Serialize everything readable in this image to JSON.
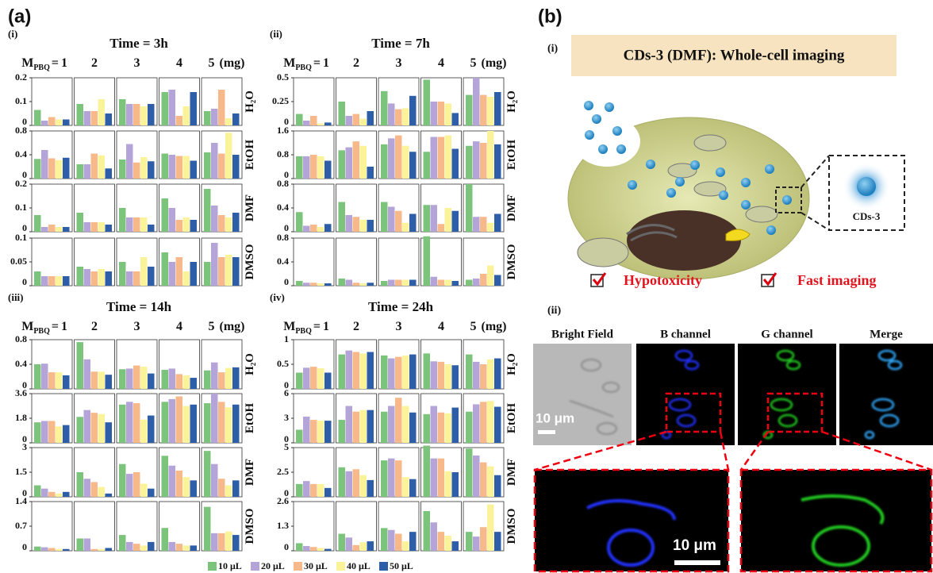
{
  "panel_a": {
    "label": "(a)",
    "mass_prefix": "M",
    "mass_sub": "PBQ",
    "mass_eq": "=",
    "masses": [
      "1",
      "2",
      "3",
      "4",
      "5"
    ],
    "mass_unit": "(mg)",
    "legend": [
      {
        "name": "10 μL",
        "color": "#7cc47c"
      },
      {
        "name": "20 μL",
        "color": "#b4a4d8"
      },
      {
        "name": "30 μL",
        "color": "#f7b98a"
      },
      {
        "name": "40 μL",
        "color": "#fbf39a"
      },
      {
        "name": "50 μL",
        "color": "#2f5ea8"
      }
    ],
    "subpanels": [
      {
        "label": "(i)",
        "title": "Time = 3h",
        "rows": [
          {
            "solvent": "H₂O",
            "ylim": [
              0,
              0.2
            ],
            "yticks": [
              0,
              0.1,
              0.2
            ],
            "values": [
              [
                0.065,
                0.02,
                0.035,
                0.025,
                0.025
              ],
              [
                0.09,
                0.06,
                0.06,
                0.11,
                0.05
              ],
              [
                0.11,
                0.09,
                0.09,
                0.08,
                0.09
              ],
              [
                0.14,
                0.15,
                0.04,
                0.08,
                0.14
              ],
              [
                0.06,
                0.07,
                0.15,
                0.03,
                0.05
              ]
            ]
          },
          {
            "solvent": "EtOH",
            "ylim": [
              0,
              0.8
            ],
            "yticks": [
              0,
              0.4,
              0.8
            ],
            "values": [
              [
                0.33,
                0.48,
                0.34,
                0.31,
                0.35
              ],
              [
                0.24,
                0.24,
                0.42,
                0.39,
                0.17
              ],
              [
                0.32,
                0.58,
                0.27,
                0.36,
                0.29
              ],
              [
                0.42,
                0.4,
                0.38,
                0.38,
                0.3
              ],
              [
                0.44,
                0.6,
                0.42,
                0.77,
                0.4
              ]
            ]
          },
          {
            "solvent": "DMF",
            "ylim": [
              0,
              0.2
            ],
            "yticks": [
              0,
              0.1,
              0.2
            ],
            "values": [
              [
                0.07,
                0.02,
                0.03,
                0.02,
                0.02
              ],
              [
                0.08,
                0.04,
                0.04,
                0.04,
                0.03
              ],
              [
                0.1,
                0.06,
                0.06,
                0.06,
                0.03
              ],
              [
                0.14,
                0.1,
                0.05,
                0.06,
                0.05
              ],
              [
                0.18,
                0.11,
                0.07,
                0.06,
                0.08
              ]
            ]
          },
          {
            "solvent": "DMSO",
            "ylim": [
              0,
              0.1
            ],
            "yticks": [
              0,
              0.05,
              0.1
            ],
            "values": [
              [
                0.03,
                0.02,
                0.02,
                0.02,
                0.02
              ],
              [
                0.04,
                0.035,
                0.03,
                0.035,
                0.03
              ],
              [
                0.05,
                0.03,
                0.03,
                0.06,
                0.04
              ],
              [
                0.07,
                0.05,
                0.06,
                0.03,
                0.05
              ],
              [
                0.05,
                0.09,
                0.06,
                0.065,
                0.06
              ]
            ]
          }
        ]
      },
      {
        "label": "(ii)",
        "title": "Time = 7h",
        "rows": [
          {
            "solvent": "H₂O",
            "ylim": [
              0,
              0.5
            ],
            "yticks": [
              0,
              0.25,
              0.5
            ],
            "values": [
              [
                0.12,
                0.05,
                0.1,
                0.02,
                0.03
              ],
              [
                0.25,
                0.1,
                0.12,
                0.07,
                0.15
              ],
              [
                0.36,
                0.23,
                0.17,
                0.18,
                0.31
              ],
              [
                0.48,
                0.25,
                0.25,
                0.23,
                0.13
              ],
              [
                0.32,
                0.5,
                0.32,
                0.3,
                0.35
              ]
            ]
          },
          {
            "solvent": "EtOH",
            "ylim": [
              0,
              1.6
            ],
            "yticks": [
              0,
              0.8,
              1.6
            ],
            "values": [
              [
                0.75,
                0.75,
                0.8,
                0.75,
                0.6
              ],
              [
                0.95,
                1.05,
                1.25,
                1.1,
                0.4
              ],
              [
                1.15,
                1.35,
                1.45,
                1.1,
                0.9
              ],
              [
                0.9,
                1.4,
                1.4,
                1.45,
                1.0
              ],
              [
                1.1,
                1.25,
                1.2,
                1.6,
                1.15
              ]
            ]
          },
          {
            "solvent": "DMF",
            "ylim": [
              0,
              0.8
            ],
            "yticks": [
              0,
              0.4,
              0.8
            ],
            "values": [
              [
                0.33,
                0.1,
                0.12,
                0.08,
                0.13
              ],
              [
                0.5,
                0.28,
                0.25,
                0.2,
                0.2
              ],
              [
                0.5,
                0.42,
                0.35,
                0.15,
                0.3
              ],
              [
                0.45,
                0.45,
                0.13,
                0.4,
                0.35
              ],
              [
                0.8,
                0.25,
                0.25,
                0.15,
                0.3
              ]
            ]
          },
          {
            "solvent": "DMSO",
            "ylim": [
              0,
              0.8
            ],
            "yticks": [
              0,
              0.4,
              0.8
            ],
            "values": [
              [
                0.08,
                0.05,
                0.05,
                0.04,
                0.04
              ],
              [
                0.12,
                0.1,
                0.05,
                0.04,
                0.05
              ],
              [
                0.08,
                0.1,
                0.1,
                0.1,
                0.1
              ],
              [
                0.83,
                0.15,
                0.1,
                0.1,
                0.08
              ],
              [
                0.1,
                0.12,
                0.2,
                0.34,
                0.18
              ]
            ]
          }
        ]
      },
      {
        "label": "(iii)",
        "title": "Time = 14h",
        "rows": [
          {
            "solvent": "H₂O",
            "ylim": [
              0,
              0.8
            ],
            "yticks": [
              0,
              0.4,
              0.8
            ],
            "values": [
              [
                0.4,
                0.41,
                0.27,
                0.27,
                0.22
              ],
              [
                0.76,
                0.48,
                0.28,
                0.28,
                0.23
              ],
              [
                0.32,
                0.33,
                0.38,
                0.36,
                0.25
              ],
              [
                0.31,
                0.33,
                0.24,
                0.22,
                0.18
              ],
              [
                0.3,
                0.43,
                0.27,
                0.34,
                0.35
              ]
            ]
          },
          {
            "solvent": "EtOH",
            "ylim": [
              0,
              3.6
            ],
            "yticks": [
              0,
              1.8,
              3.6
            ],
            "values": [
              [
                1.5,
                1.6,
                1.6,
                1.2,
                1.3
              ],
              [
                1.9,
                2.4,
                2.2,
                2.1,
                1.5
              ],
              [
                2.8,
                3.0,
                2.9,
                1.7,
                2.0
              ],
              [
                3.0,
                3.2,
                3.4,
                2.7,
                2.8
              ],
              [
                2.9,
                3.6,
                3.0,
                2.6,
                2.8
              ]
            ]
          },
          {
            "solvent": "DMF",
            "ylim": [
              0,
              3
            ],
            "yticks": [
              0,
              1.5,
              3
            ],
            "values": [
              [
                0.7,
                0.5,
                0.3,
                0.2,
                0.3
              ],
              [
                1.5,
                1.1,
                0.9,
                0.6,
                0.2
              ],
              [
                2.0,
                1.4,
                1.5,
                0.8,
                0.5
              ],
              [
                2.5,
                1.9,
                1.6,
                1.2,
                1.0
              ],
              [
                2.8,
                2.0,
                1.1,
                0.7,
                1.0
              ]
            ]
          },
          {
            "solvent": "DMSO",
            "ylim": [
              0,
              1.4
            ],
            "yticks": [
              0,
              0.7,
              1.4
            ],
            "values": [
              [
                0.12,
                0.1,
                0.08,
                0.05,
                0.05
              ],
              [
                0.35,
                0.35,
                0.05,
                0.05,
                0.08
              ],
              [
                0.45,
                0.25,
                0.2,
                0.15,
                0.25
              ],
              [
                0.65,
                0.25,
                0.2,
                0.15,
                0.15
              ],
              [
                1.25,
                0.5,
                0.5,
                0.55,
                0.45
              ]
            ]
          }
        ]
      },
      {
        "label": "(iv)",
        "title": "Time = 24h",
        "rows": [
          {
            "solvent": "H₂O",
            "ylim": [
              0,
              1
            ],
            "yticks": [
              0,
              0.5,
              1
            ],
            "values": [
              [
                0.33,
                0.43,
                0.45,
                0.42,
                0.33
              ],
              [
                0.7,
                0.78,
                0.75,
                0.72,
                0.75
              ],
              [
                0.68,
                0.62,
                0.65,
                0.68,
                0.7
              ],
              [
                0.72,
                0.56,
                0.55,
                0.5,
                0.48
              ],
              [
                0.7,
                0.55,
                0.5,
                0.6,
                0.62
              ]
            ]
          },
          {
            "solvent": "EtOH",
            "ylim": [
              0,
              6
            ],
            "yticks": [
              0,
              3,
              6
            ],
            "values": [
              [
                1.6,
                3.2,
                2.8,
                2.7,
                2.7
              ],
              [
                2.8,
                4.5,
                3.8,
                4.0,
                4.0
              ],
              [
                3.8,
                4.5,
                5.5,
                4.5,
                3.7
              ],
              [
                3.5,
                4.5,
                3.7,
                3.6,
                4.3
              ],
              [
                3.8,
                4.7,
                5.0,
                5.1,
                4.4
              ]
            ]
          },
          {
            "solvent": "DMF",
            "ylim": [
              0,
              5
            ],
            "yticks": [
              0,
              2.5,
              5
            ],
            "values": [
              [
                1.3,
                1.6,
                1.3,
                1.3,
                0.9
              ],
              [
                3.0,
                2.6,
                2.8,
                2.2,
                1.7
              ],
              [
                3.7,
                3.9,
                3.7,
                2.0,
                1.8
              ],
              [
                5.2,
                3.9,
                3.9,
                2.6,
                2.5
              ],
              [
                4.9,
                4.2,
                3.5,
                3.1,
                2.2
              ]
            ]
          },
          {
            "solvent": "DMSO",
            "ylim": [
              0,
              2.6
            ],
            "yticks": [
              0,
              1.3,
              2.6
            ],
            "values": [
              [
                0.4,
                0.25,
                0.2,
                0.15,
                0.1
              ],
              [
                0.9,
                0.7,
                0.3,
                0.45,
                0.5
              ],
              [
                1.2,
                1.1,
                0.9,
                0.5,
                1.0
              ],
              [
                2.1,
                1.5,
                1.0,
                0.8,
                0.5
              ],
              [
                1.0,
                0.75,
                1.25,
                2.45,
                1.0
              ]
            ]
          }
        ]
      }
    ]
  },
  "panel_b": {
    "label": "(b)",
    "sub_i": "(i)",
    "banner": "CDs-3 (DMF): Whole-cell imaging",
    "particle_label": "CDs-3",
    "checks": [
      "Hypotoxicity",
      "Fast imaging"
    ],
    "sub_ii": "(ii)",
    "columns": [
      "Bright Field",
      "B channel",
      "G channel",
      "Merge"
    ],
    "scale_bar": "10 μm"
  }
}
